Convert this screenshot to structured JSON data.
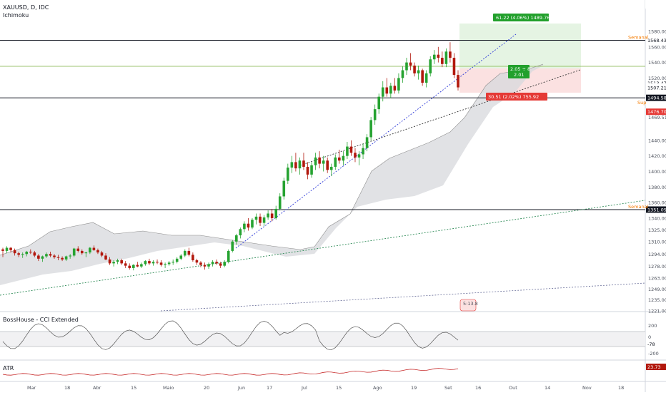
{
  "header": {
    "symbol_line": "XAUUSD, D, IDC",
    "indicator_main": "Ichimoku"
  },
  "panes": {
    "cci_title": "BossHouse - CCI Extended",
    "atr_title": "ATR"
  },
  "colors": {
    "up": "#26a331",
    "down": "#b2180d",
    "cloud": "#d7d8dc",
    "cloud_line": "#8c8c8c",
    "blue_trend": "#2f3bd8",
    "green_trend": "#2e8b57",
    "black_trend": "#333333",
    "profit_zone": "#e5f4e3",
    "loss_zone": "#fbe1e1",
    "cci_line": "#2e7d32",
    "atr_line": "#c62828",
    "level_label": "#f57c00"
  },
  "price_axis": {
    "ticks": [
      "1580.00",
      "1560.00",
      "1540.00",
      "1520.00",
      "1469.51",
      "1440.00",
      "1420.00",
      "1400.00",
      "1380.00",
      "1360.00",
      "1340.00",
      "1325.00",
      "1310.00",
      "1294.00",
      "1278.00",
      "1263.00",
      "1249.00",
      "1235.00",
      "1221.00"
    ]
  },
  "price_tags": [
    {
      "text": "1568.43",
      "kind": "dark"
    },
    {
      "text": "1513.47",
      "kind": "dark"
    },
    {
      "text": "1509.26",
      "kind": "green"
    },
    {
      "text": "1507.21",
      "kind": "dark"
    },
    {
      "text": "1494.58",
      "kind": "black"
    },
    {
      "text": "1476.70",
      "kind": "red"
    },
    {
      "text": "1351.05",
      "kind": "black"
    }
  ],
  "level_labels": [
    {
      "text": "Semanal"
    },
    {
      "text": "Sup"
    },
    {
      "text": "Semanal"
    }
  ],
  "position": {
    "target_label": "61.22 (4.06%) 1489.76",
    "rr_line1": "2.05 ÷ 8",
    "rr_line2": "2.01",
    "stop_label": "30.51 (2.02%) 755.92"
  },
  "watermark": "5:13.8",
  "cci_axis": {
    "ticks": [
      "200",
      "0",
      "-200"
    ],
    "value": "-78"
  },
  "atr_axis": {
    "value": "23.73"
  },
  "time_axis": {
    "labels": [
      "Mar",
      "18",
      "Abr",
      "15",
      "Maio",
      "20",
      "Jun",
      "17",
      "Jul",
      "15",
      "Ago",
      "19",
      "Set",
      "16",
      "Out",
      "14",
      "Nov",
      "18"
    ]
  },
  "chart_data": {
    "type": "candlestick",
    "title": "XAUUSD, D, IDC",
    "y_range": [
      1221,
      1590
    ],
    "levels": [
      1568.43,
      1494.58,
      1351.05
    ],
    "ohlc": [
      [
        1300,
        1302,
        1290,
        1298
      ],
      [
        1298,
        1304,
        1295,
        1302
      ],
      [
        1302,
        1303,
        1296,
        1299
      ],
      [
        1299,
        1301,
        1292,
        1295
      ],
      [
        1295,
        1297,
        1290,
        1293
      ],
      [
        1293,
        1296,
        1289,
        1294
      ],
      [
        1294,
        1298,
        1291,
        1297
      ],
      [
        1297,
        1300,
        1294,
        1296
      ],
      [
        1296,
        1298,
        1290,
        1292
      ],
      [
        1292,
        1294,
        1285,
        1288
      ],
      [
        1288,
        1292,
        1284,
        1291
      ],
      [
        1291,
        1296,
        1289,
        1294
      ],
      [
        1294,
        1297,
        1290,
        1292
      ],
      [
        1292,
        1294,
        1288,
        1290
      ],
      [
        1290,
        1293,
        1286,
        1289
      ],
      [
        1289,
        1291,
        1285,
        1287
      ],
      [
        1287,
        1292,
        1285,
        1291
      ],
      [
        1291,
        1294,
        1288,
        1292
      ],
      [
        1292,
        1302,
        1290,
        1301
      ],
      [
        1301,
        1304,
        1296,
        1298
      ],
      [
        1298,
        1300,
        1293,
        1295
      ],
      [
        1295,
        1297,
        1290,
        1296
      ],
      [
        1296,
        1303,
        1294,
        1302
      ],
      [
        1302,
        1305,
        1298,
        1299
      ],
      [
        1299,
        1301,
        1294,
        1296
      ],
      [
        1296,
        1298,
        1290,
        1292
      ],
      [
        1292,
        1295,
        1286,
        1287
      ],
      [
        1287,
        1290,
        1280,
        1282
      ],
      [
        1282,
        1286,
        1278,
        1284
      ],
      [
        1284,
        1288,
        1281,
        1286
      ],
      [
        1286,
        1288,
        1280,
        1282
      ],
      [
        1282,
        1285,
        1276,
        1279
      ],
      [
        1279,
        1282,
        1274,
        1276
      ],
      [
        1276,
        1281,
        1273,
        1280
      ],
      [
        1280,
        1284,
        1277,
        1278
      ],
      [
        1278,
        1283,
        1276,
        1281
      ],
      [
        1281,
        1286,
        1279,
        1285
      ],
      [
        1285,
        1288,
        1280,
        1282
      ],
      [
        1282,
        1286,
        1279,
        1284
      ],
      [
        1284,
        1287,
        1281,
        1283
      ],
      [
        1283,
        1286,
        1278,
        1280
      ],
      [
        1280,
        1283,
        1276,
        1281
      ],
      [
        1281,
        1285,
        1279,
        1283
      ],
      [
        1283,
        1287,
        1280,
        1284
      ],
      [
        1284,
        1290,
        1282,
        1288
      ],
      [
        1288,
        1294,
        1286,
        1292
      ],
      [
        1292,
        1300,
        1290,
        1298
      ],
      [
        1298,
        1302,
        1291,
        1293
      ],
      [
        1293,
        1296,
        1284,
        1286
      ],
      [
        1286,
        1288,
        1280,
        1283
      ],
      [
        1283,
        1285,
        1277,
        1280
      ],
      [
        1280,
        1283,
        1274,
        1278
      ],
      [
        1278,
        1283,
        1275,
        1281
      ],
      [
        1281,
        1286,
        1278,
        1284
      ],
      [
        1284,
        1287,
        1280,
        1282
      ],
      [
        1282,
        1284,
        1276,
        1279
      ],
      [
        1279,
        1286,
        1277,
        1284
      ],
      [
        1284,
        1300,
        1282,
        1298
      ],
      [
        1298,
        1312,
        1296,
        1310
      ],
      [
        1310,
        1320,
        1306,
        1318
      ],
      [
        1318,
        1328,
        1314,
        1326
      ],
      [
        1326,
        1336,
        1322,
        1333
      ],
      [
        1333,
        1340,
        1324,
        1328
      ],
      [
        1328,
        1340,
        1326,
        1338
      ],
      [
        1338,
        1346,
        1332,
        1342
      ],
      [
        1342,
        1346,
        1330,
        1334
      ],
      [
        1334,
        1344,
        1330,
        1341
      ],
      [
        1341,
        1350,
        1338,
        1346
      ],
      [
        1346,
        1352,
        1336,
        1340
      ],
      [
        1340,
        1356,
        1338,
        1352
      ],
      [
        1352,
        1372,
        1350,
        1368
      ],
      [
        1368,
        1392,
        1364,
        1388
      ],
      [
        1388,
        1410,
        1384,
        1405
      ],
      [
        1405,
        1420,
        1398,
        1412
      ],
      [
        1412,
        1424,
        1400,
        1404
      ],
      [
        1404,
        1418,
        1396,
        1414
      ],
      [
        1414,
        1424,
        1402,
        1406
      ],
      [
        1406,
        1412,
        1390,
        1396
      ],
      [
        1396,
        1412,
        1392,
        1408
      ],
      [
        1408,
        1424,
        1402,
        1418
      ],
      [
        1418,
        1426,
        1404,
        1410
      ],
      [
        1410,
        1420,
        1400,
        1414
      ],
      [
        1414,
        1418,
        1398,
        1402
      ],
      [
        1402,
        1410,
        1394,
        1406
      ],
      [
        1406,
        1422,
        1402,
        1418
      ],
      [
        1418,
        1428,
        1410,
        1414
      ],
      [
        1414,
        1426,
        1408,
        1420
      ],
      [
        1420,
        1438,
        1416,
        1432
      ],
      [
        1432,
        1440,
        1420,
        1424
      ],
      [
        1424,
        1430,
        1412,
        1418
      ],
      [
        1418,
        1426,
        1408,
        1422
      ],
      [
        1422,
        1436,
        1416,
        1430
      ],
      [
        1430,
        1448,
        1426,
        1444
      ],
      [
        1444,
        1470,
        1440,
        1466
      ],
      [
        1466,
        1486,
        1460,
        1480
      ],
      [
        1480,
        1500,
        1474,
        1496
      ],
      [
        1496,
        1516,
        1490,
        1508
      ],
      [
        1508,
        1520,
        1496,
        1500
      ],
      [
        1500,
        1514,
        1494,
        1510
      ],
      [
        1510,
        1520,
        1500,
        1504
      ],
      [
        1504,
        1526,
        1500,
        1520
      ],
      [
        1520,
        1535,
        1514,
        1530
      ],
      [
        1530,
        1546,
        1524,
        1540
      ],
      [
        1540,
        1552,
        1530,
        1536
      ],
      [
        1536,
        1540,
        1522,
        1526
      ],
      [
        1526,
        1536,
        1518,
        1530
      ],
      [
        1530,
        1532,
        1510,
        1514
      ],
      [
        1514,
        1530,
        1508,
        1526
      ],
      [
        1526,
        1548,
        1522,
        1544
      ],
      [
        1544,
        1556,
        1538,
        1550
      ],
      [
        1550,
        1560,
        1540,
        1546
      ],
      [
        1546,
        1554,
        1534,
        1538
      ],
      [
        1538,
        1558,
        1534,
        1554
      ],
      [
        1554,
        1566,
        1540,
        1546
      ],
      [
        1546,
        1552,
        1520,
        1524
      ],
      [
        1524,
        1530,
        1504,
        1508
      ]
    ]
  }
}
